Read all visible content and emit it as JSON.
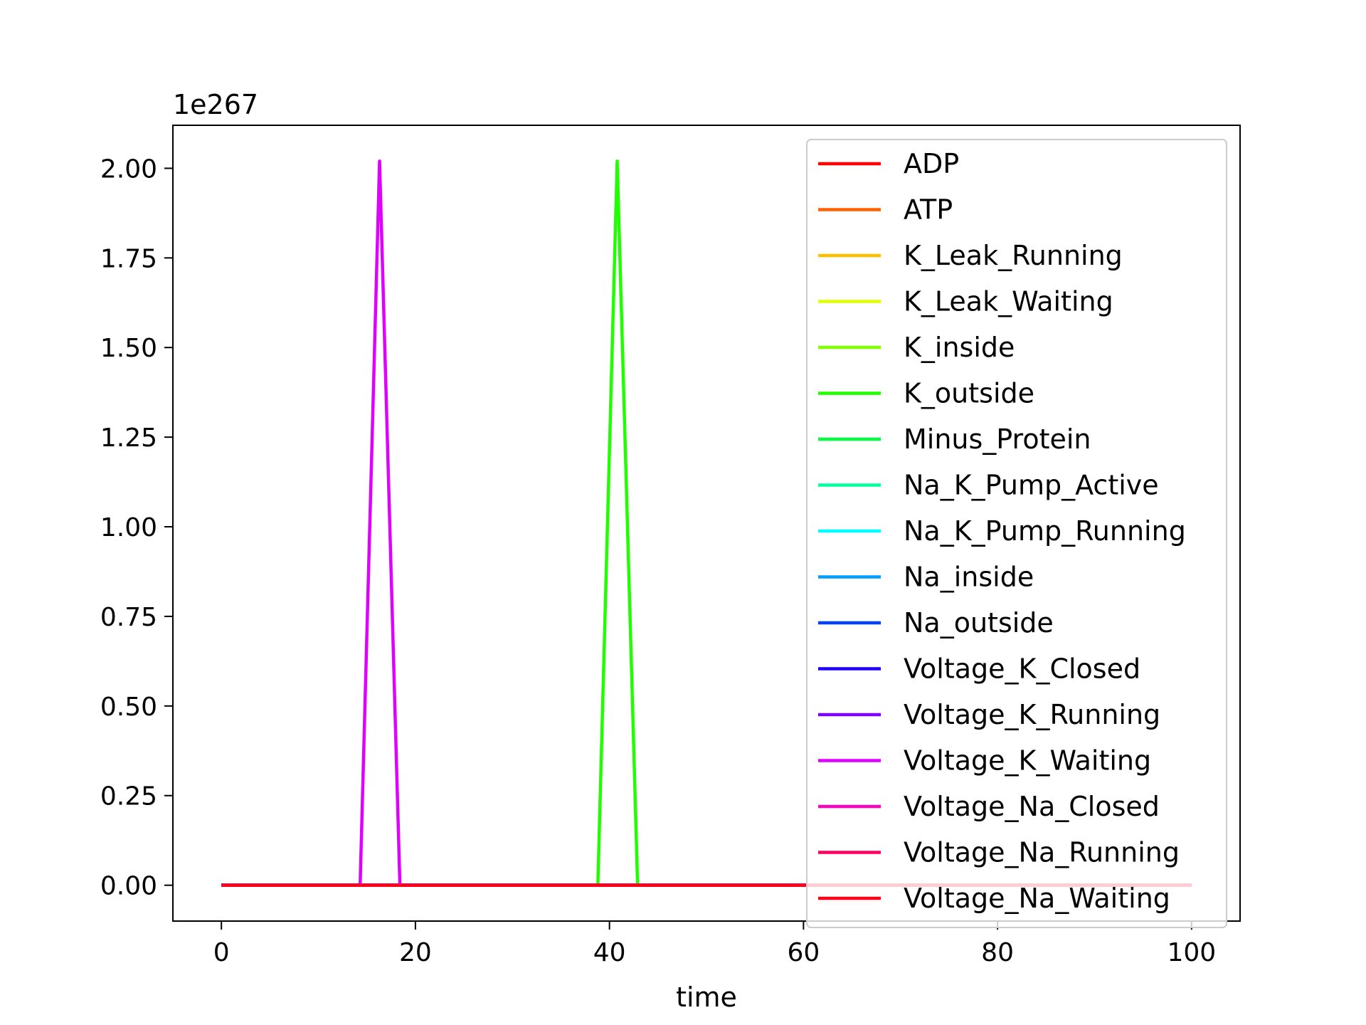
{
  "chart_data": {
    "type": "line",
    "title": "",
    "xlabel": "time",
    "ylabel": "",
    "y_offset_label": "1e267",
    "xlim": [
      -5,
      105
    ],
    "ylim": [
      -0.1,
      2.12
    ],
    "x_ticks": [
      0,
      20,
      40,
      60,
      80,
      100
    ],
    "x_tick_labels": [
      "0",
      "20",
      "40",
      "60",
      "80",
      "100"
    ],
    "y_ticks": [
      0,
      0.25,
      0.5,
      0.75,
      1.0,
      1.25,
      1.5,
      1.75,
      2.0
    ],
    "y_tick_labels": [
      "0.00",
      "0.25",
      "0.50",
      "0.75",
      "1.00",
      "1.25",
      "1.50",
      "1.75",
      "2.00"
    ],
    "grid": false,
    "legend_position": "upper-right",
    "series": [
      {
        "name": "ADP",
        "color": "#ff0000",
        "points": [
          [
            0,
            0
          ],
          [
            100,
            0
          ]
        ]
      },
      {
        "name": "ATP",
        "color": "#ff6000",
        "points": [
          [
            0,
            0
          ],
          [
            100,
            0
          ]
        ]
      },
      {
        "name": "K_Leak_Running",
        "color": "#ffbf00",
        "points": [
          [
            0,
            0
          ],
          [
            100,
            0
          ]
        ]
      },
      {
        "name": "K_Leak_Waiting",
        "color": "#dfff00",
        "points": [
          [
            0,
            0
          ],
          [
            100,
            0
          ]
        ]
      },
      {
        "name": "K_inside",
        "color": "#80ff00",
        "points": [
          [
            0,
            0
          ],
          [
            100,
            0
          ]
        ]
      },
      {
        "name": "K_outside",
        "color": "#20ff00",
        "points": [
          [
            0,
            0
          ],
          [
            38.8,
            0
          ],
          [
            40.8,
            2.02
          ],
          [
            42.9,
            0
          ],
          [
            100,
            0
          ]
        ]
      },
      {
        "name": "Minus_Protein",
        "color": "#00ff40",
        "points": [
          [
            0,
            0
          ],
          [
            100,
            0
          ]
        ]
      },
      {
        "name": "Na_K_Pump_Active",
        "color": "#00ff9f",
        "points": [
          [
            0,
            0
          ],
          [
            100,
            0
          ]
        ]
      },
      {
        "name": "Na_K_Pump_Running",
        "color": "#00ffff",
        "points": [
          [
            0,
            0
          ],
          [
            100,
            0
          ]
        ]
      },
      {
        "name": "Na_inside",
        "color": "#009fff",
        "points": [
          [
            0,
            0
          ],
          [
            100,
            0
          ]
        ]
      },
      {
        "name": "Na_outside",
        "color": "#0040ff",
        "points": [
          [
            0,
            0
          ],
          [
            100,
            0
          ]
        ]
      },
      {
        "name": "Voltage_K_Closed",
        "color": "#2000ff",
        "points": [
          [
            0,
            0
          ],
          [
            100,
            0
          ]
        ]
      },
      {
        "name": "Voltage_K_Running",
        "color": "#8000ff",
        "points": [
          [
            0,
            0
          ],
          [
            100,
            0
          ]
        ]
      },
      {
        "name": "Voltage_K_Waiting",
        "color": "#df00ff",
        "points": [
          [
            0,
            0
          ],
          [
            14.3,
            0
          ],
          [
            16.3,
            2.02
          ],
          [
            18.4,
            0
          ],
          [
            100,
            0
          ]
        ]
      },
      {
        "name": "Voltage_Na_Closed",
        "color": "#ff00bf",
        "points": [
          [
            0,
            0
          ],
          [
            100,
            0
          ]
        ]
      },
      {
        "name": "Voltage_Na_Running",
        "color": "#ff0060",
        "points": [
          [
            0,
            0
          ],
          [
            100,
            0
          ]
        ]
      },
      {
        "name": "Voltage_Na_Waiting",
        "color": "#ff0018",
        "points": [
          [
            0,
            0
          ],
          [
            100,
            0
          ]
        ]
      }
    ]
  }
}
